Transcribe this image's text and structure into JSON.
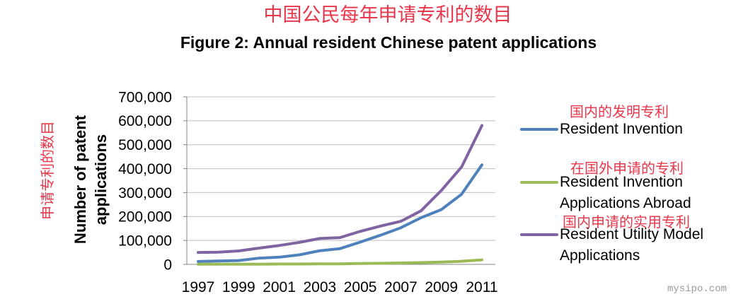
{
  "chinese_title": "中国公民每年申请专利的数目",
  "watermark": "mysipo.com",
  "colors": {
    "red_text": "#e8374a",
    "gridline": "#bfbfbf",
    "axis": "#868686"
  },
  "chart_data": {
    "type": "line",
    "title": "Figure 2: Annual resident Chinese patent applications",
    "xlabel": "",
    "ylabel": "Number of patent applications",
    "ylabel_cn": "申请专利的数目",
    "x": [
      1997,
      1998,
      1999,
      2000,
      2001,
      2002,
      2003,
      2004,
      2005,
      2006,
      2007,
      2008,
      2009,
      2010,
      2011
    ],
    "x_tick_labels": [
      "1997",
      "1999",
      "2001",
      "2003",
      "2005",
      "2007",
      "2009",
      "2011"
    ],
    "ylim": [
      0,
      700000
    ],
    "y_ticks": [
      0,
      100000,
      200000,
      300000,
      400000,
      500000,
      600000,
      700000
    ],
    "y_tick_labels": [
      "0",
      "100,000",
      "200,000",
      "300,000",
      "400,000",
      "500,000",
      "600,000",
      "700,000"
    ],
    "grid": "horizontal",
    "legend_position": "right",
    "series": [
      {
        "name": "Resident Invention",
        "annotation": "国内的发明专利",
        "color": "#4f81bd",
        "values": [
          12000,
          14000,
          16000,
          26000,
          30000,
          40000,
          57000,
          66000,
          93000,
          122000,
          153000,
          195000,
          229000,
          293000,
          416000
        ]
      },
      {
        "name": "Resident Invention Applications Abroad",
        "annotation": "在国外申请的专利",
        "color": "#9bbb59",
        "values": [
          1000,
          1000,
          1000,
          1000,
          1500,
          1500,
          2000,
          2500,
          3500,
          4500,
          6000,
          7500,
          9500,
          13000,
          19000
        ]
      },
      {
        "name": "Resident Utility Model Applications",
        "annotation": "国内申请的实用专利",
        "color": "#8064a2",
        "values": [
          50000,
          51000,
          56000,
          68000,
          79000,
          92000,
          108000,
          112000,
          138000,
          160000,
          180000,
          224000,
          309000,
          407000,
          580000
        ]
      }
    ]
  }
}
